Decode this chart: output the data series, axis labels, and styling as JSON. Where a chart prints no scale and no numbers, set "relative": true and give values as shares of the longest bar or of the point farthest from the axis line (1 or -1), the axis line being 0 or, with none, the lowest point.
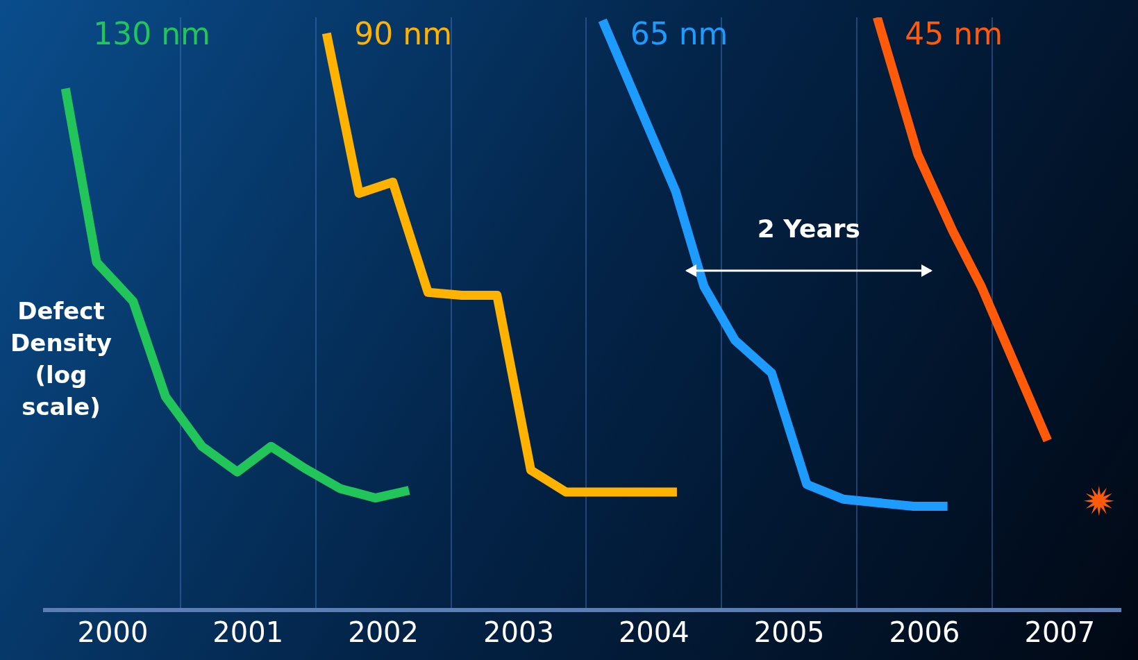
{
  "chart_data": {
    "type": "line",
    "relative": true,
    "ylabel": "Defect Density (log scale)",
    "xlim": [
      2000,
      2007.95
    ],
    "xticks": [
      {
        "value": 2000.5,
        "label": "2000"
      },
      {
        "value": 2001,
        "label": null
      },
      {
        "value": 2001.5,
        "label": "2001"
      },
      {
        "value": 2002,
        "label": null
      },
      {
        "value": 2002.5,
        "label": "2002"
      },
      {
        "value": 2003,
        "label": null
      },
      {
        "value": 2003.5,
        "label": "2003"
      },
      {
        "value": 2004,
        "label": null
      },
      {
        "value": 2004.5,
        "label": "2004"
      },
      {
        "value": 2005,
        "label": null
      },
      {
        "value": 2005.5,
        "label": "2005"
      },
      {
        "value": 2006,
        "label": null
      },
      {
        "value": 2006.5,
        "label": "2006"
      },
      {
        "value": 2007,
        "label": null
      },
      {
        "value": 2007.5,
        "label": "2007"
      }
    ],
    "tick_labels": "x",
    "grid": "x",
    "legend": false,
    "marker": "none",
    "line_style": "solid",
    "annotations": [
      "2 Years"
    ],
    "series": [
      {
        "name": "130 nm",
        "color": "#22c55a",
        "x": [
          2000.15,
          2000.38,
          2000.65,
          2000.89,
          2001.16,
          2001.42,
          2001.67,
          2001.92,
          2002.18,
          2002.44,
          2002.69
        ],
        "values": [
          0.88,
          0.587,
          0.521,
          0.36,
          0.276,
          0.233,
          0.276,
          0.239,
          0.205,
          0.189,
          0.202
        ]
      },
      {
        "name": "90 nm",
        "color": "#ffb300",
        "x": [
          2002.08,
          2002.32,
          2002.57,
          2002.83,
          2003.08,
          2003.34,
          2003.59,
          2003.85,
          2004.67
        ],
        "values": [
          0.973,
          0.703,
          0.722,
          0.536,
          0.531,
          0.531,
          0.236,
          0.199,
          0.199
        ]
      },
      {
        "name": "65 nm",
        "color": "#1e9bff",
        "x": [
          2004.12,
          2004.66,
          2004.87,
          2005.1,
          2005.37,
          2005.63,
          2005.9,
          2006.42,
          2006.67
        ],
        "values": [
          0.995,
          0.707,
          0.546,
          0.455,
          0.4,
          0.212,
          0.187,
          0.175,
          0.175
        ]
      },
      {
        "name": "45 nm",
        "color": "#ff5a0a",
        "x": [
          2006.15,
          2006.45,
          2006.71,
          2006.92,
          2007.41
        ],
        "values": [
          1.0,
          0.769,
          0.639,
          0.546,
          0.286
        ]
      },
      {
        "type": "scatter",
        "marker": "star",
        "color": "#ff5a0a",
        "x": [
          2007.79
        ],
        "values": [
          0.184
        ]
      }
    ]
  }
}
